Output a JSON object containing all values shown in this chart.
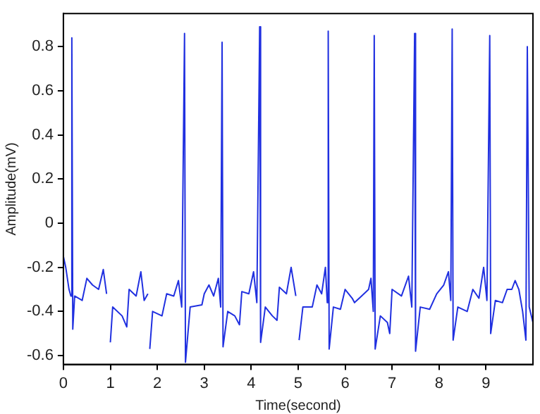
{
  "chart_data": {
    "type": "line",
    "xlabel": "Time(second)",
    "ylabel": "Amplitude(mV)",
    "xlim": [
      0,
      10
    ],
    "xticks": [
      0,
      1,
      2,
      3,
      4,
      5,
      6,
      7,
      8,
      9
    ],
    "ylim": [
      -0.64,
      0.95
    ],
    "yticks": [
      -0.6,
      -0.4,
      -0.2,
      0,
      0.2,
      0.4,
      0.6,
      0.8
    ],
    "grid": false,
    "legend": false,
    "marker": "none",
    "line_style": "solid",
    "series": [
      {
        "color": "#2030e0",
        "x": [
          0,
          0.05,
          0.12,
          0.16,
          0.18,
          0.2,
          0.24,
          0.4,
          0.5,
          0.62,
          0.75,
          0.85,
          0.92,
          0.98,
          1.0,
          1.05,
          1.25,
          1.35,
          1.4,
          1.55,
          1.65,
          1.72,
          1.8,
          1.82,
          1.84,
          1.9,
          2.1,
          2.2,
          2.35,
          2.45,
          2.52,
          2.58,
          2.6,
          2.7,
          2.95,
          3.0,
          3.1,
          3.2,
          3.3,
          3.35,
          3.38,
          3.4,
          3.5,
          3.65,
          3.75,
          3.8,
          3.95,
          4.05,
          4.12,
          4.18,
          4.2,
          4.3,
          4.45,
          4.55,
          4.6,
          4.75,
          4.85,
          4.95,
          5.0,
          5.02,
          5.1,
          5.3,
          5.4,
          5.5,
          5.58,
          5.62,
          5.64,
          5.66,
          5.75,
          5.9,
          6.0,
          6.15,
          6.2,
          6.5,
          6.55,
          6.6,
          6.62,
          6.64,
          6.75,
          6.9,
          6.95,
          7.0,
          7.2,
          7.35,
          7.42,
          7.48,
          7.5,
          7.6,
          7.8,
          7.95,
          8.1,
          8.2,
          8.25,
          8.28,
          8.3,
          8.4,
          8.6,
          8.72,
          8.85,
          8.95,
          9.02,
          9.08,
          9.1,
          9.2,
          9.35,
          9.45,
          9.55,
          9.62,
          9.7,
          9.78,
          9.85,
          9.88,
          9.92,
          10.0
        ],
        "values": [
          -0.15,
          -0.2,
          -0.3,
          -0.33,
          0.84,
          -0.48,
          -0.33,
          -0.35,
          -0.25,
          -0.28,
          -0.3,
          -0.21,
          -0.32,
          null,
          -0.54,
          -0.38,
          -0.42,
          -0.47,
          -0.3,
          -0.33,
          -0.22,
          -0.35,
          -0.32,
          null,
          -0.57,
          -0.4,
          -0.42,
          -0.32,
          -0.33,
          -0.26,
          -0.38,
          0.86,
          -0.63,
          -0.38,
          -0.37,
          -0.32,
          -0.28,
          -0.33,
          -0.25,
          -0.38,
          0.82,
          -0.56,
          -0.4,
          -0.42,
          -0.46,
          -0.31,
          -0.32,
          -0.22,
          -0.36,
          0.89,
          -0.54,
          -0.38,
          -0.42,
          -0.44,
          -0.29,
          -0.32,
          -0.2,
          -0.33,
          null,
          -0.53,
          -0.38,
          -0.38,
          -0.28,
          -0.32,
          -0.2,
          -0.36,
          0.87,
          -0.57,
          -0.38,
          -0.39,
          -0.3,
          -0.34,
          -0.36,
          -0.3,
          -0.25,
          -0.4,
          0.85,
          -0.57,
          -0.42,
          -0.45,
          -0.5,
          -0.3,
          -0.33,
          -0.24,
          -0.38,
          0.86,
          -0.58,
          -0.38,
          -0.39,
          -0.32,
          -0.28,
          -0.22,
          -0.35,
          0.88,
          -0.53,
          -0.38,
          -0.4,
          -0.3,
          -0.34,
          -0.2,
          -0.35,
          0.85,
          -0.5,
          -0.35,
          -0.36,
          -0.3,
          -0.3,
          -0.26,
          -0.3,
          -0.4,
          -0.53,
          0.8,
          -0.38,
          -0.45
        ]
      }
    ]
  }
}
